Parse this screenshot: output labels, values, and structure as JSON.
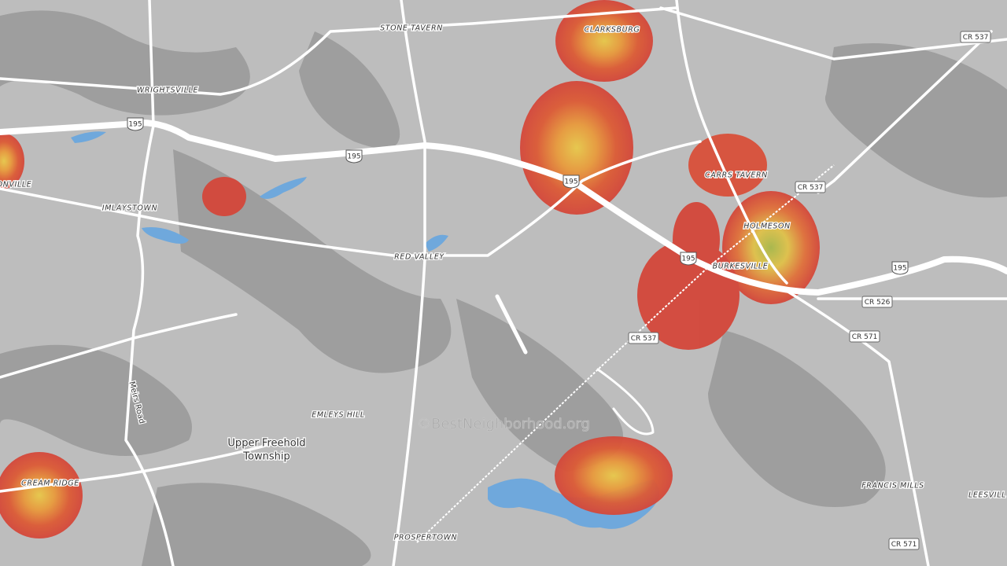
{
  "places": [
    "STONE TAVERN",
    "CLARKSBURG",
    "WRIGHTSVILLE",
    "IMLAYSTOWN",
    "ONVILLE",
    "RED VALLEY",
    "CARRS TAVERN",
    "HOLMESON",
    "BURKESVILLE",
    "EMLEYS HILL",
    "CREAM RIDGE",
    "FRANCIS MILLS",
    "LEESVILL",
    "PROSPERTOWN"
  ],
  "township": [
    "Upper Freehold",
    "Township"
  ],
  "road_name": "Meirs Road",
  "county_routes": [
    "CR 537",
    "CR 537",
    "CR 537",
    "CR 526",
    "CR 571",
    "CR 571"
  ],
  "interstate_shields": [
    "195",
    "195",
    "195",
    "195",
    "195"
  ],
  "watermark": "©BestNeighborhood.org"
}
